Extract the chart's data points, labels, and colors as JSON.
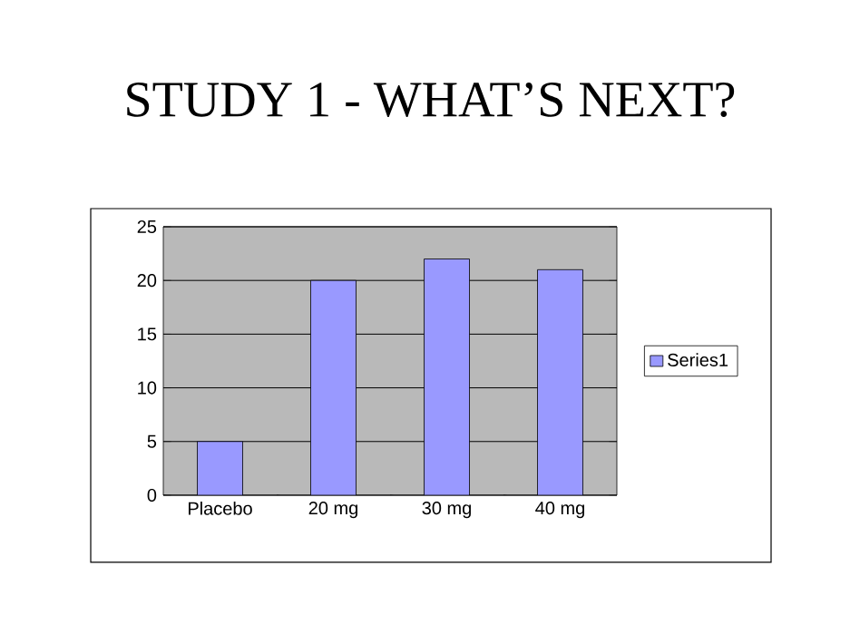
{
  "chart_data": {
    "type": "bar",
    "title": "STUDY 1 - WHAT’S NEXT?",
    "categories": [
      "Placebo",
      "20 mg",
      "30 mg",
      "40 mg"
    ],
    "series": [
      {
        "name": "Series1",
        "color": "#9999ff",
        "values": [
          5,
          20,
          22,
          21
        ]
      }
    ],
    "ylim": [
      0,
      25
    ],
    "yticks": [
      0,
      5,
      10,
      15,
      20,
      25
    ],
    "grid": "y",
    "legend": "right"
  }
}
